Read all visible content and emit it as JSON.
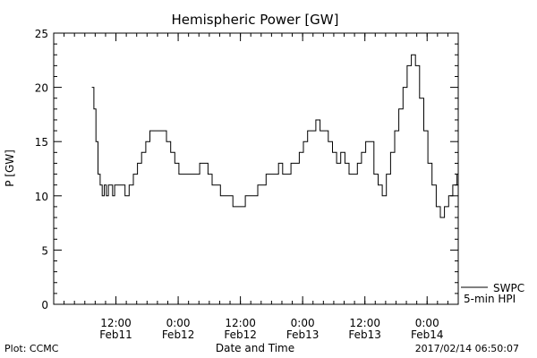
{
  "chart_data": {
    "type": "line",
    "title": "Hemispheric Power [GW]",
    "xlabel": "Date and Time",
    "ylabel": "P [GW]",
    "ylim": [
      0,
      25
    ],
    "y_ticks": [
      0,
      5,
      10,
      15,
      20,
      25
    ],
    "xlim": [
      "2017-02-11 00:00",
      "2017-02-14 06:00"
    ],
    "x_ticks": [
      {
        "x": "2017-02-11 12:00",
        "time": "12:00",
        "date": "Feb11"
      },
      {
        "x": "2017-02-12 00:00",
        "time": "0:00",
        "date": "Feb12"
      },
      {
        "x": "2017-02-12 12:00",
        "time": "12:00",
        "date": "Feb12"
      },
      {
        "x": "2017-02-13 00:00",
        "time": "0:00",
        "date": "Feb13"
      },
      {
        "x": "2017-02-13 12:00",
        "time": "12:00",
        "date": "Feb13"
      },
      {
        "x": "2017-02-14 00:00",
        "time": "0:00",
        "date": "Feb14"
      }
    ],
    "grid": false,
    "legend": {
      "placement": "bottom-right",
      "entries": [
        "SWPC",
        "5-min HPI"
      ]
    },
    "series": [
      {
        "name": "SWPC 5-min HPI",
        "x": [
          "2017-02-11 07:21",
          "2017-02-11 07:45",
          "2017-02-11 08:09",
          "2017-02-11 08:33",
          "2017-02-11 08:57",
          "2017-02-11 09:21",
          "2017-02-11 09:45",
          "2017-02-11 10:09",
          "2017-02-11 10:33",
          "2017-02-11 10:57",
          "2017-02-11 11:21",
          "2017-02-11 11:45",
          "2017-02-11 12:09",
          "2017-02-11 12:33",
          "2017-02-11 12:57",
          "2017-02-11 13:45",
          "2017-02-11 14:33",
          "2017-02-11 15:21",
          "2017-02-11 16:09",
          "2017-02-11 16:57",
          "2017-02-11 17:45",
          "2017-02-11 18:33",
          "2017-02-11 19:21",
          "2017-02-11 20:09",
          "2017-02-11 20:57",
          "2017-02-11 21:45",
          "2017-02-11 22:33",
          "2017-02-11 23:21",
          "2017-02-12 00:09",
          "2017-02-12 00:57",
          "2017-02-12 01:45",
          "2017-02-12 02:33",
          "2017-02-12 03:21",
          "2017-02-12 04:09",
          "2017-02-12 04:57",
          "2017-02-12 05:45",
          "2017-02-12 06:33",
          "2017-02-12 07:21",
          "2017-02-12 08:09",
          "2017-02-12 08:57",
          "2017-02-12 09:45",
          "2017-02-12 10:33",
          "2017-02-12 11:21",
          "2017-02-12 12:09",
          "2017-02-12 12:57",
          "2017-02-12 13:45",
          "2017-02-12 14:33",
          "2017-02-12 15:21",
          "2017-02-12 16:09",
          "2017-02-12 16:57",
          "2017-02-12 17:45",
          "2017-02-12 18:33",
          "2017-02-12 19:21",
          "2017-02-12 20:09",
          "2017-02-12 20:57",
          "2017-02-12 21:45",
          "2017-02-12 22:33",
          "2017-02-12 23:21",
          "2017-02-13 00:09",
          "2017-02-13 00:57",
          "2017-02-13 01:45",
          "2017-02-13 02:33",
          "2017-02-13 03:21",
          "2017-02-13 04:09",
          "2017-02-13 04:57",
          "2017-02-13 05:45",
          "2017-02-13 06:33",
          "2017-02-13 07:21",
          "2017-02-13 08:09",
          "2017-02-13 08:57",
          "2017-02-13 09:45",
          "2017-02-13 10:33",
          "2017-02-13 11:21",
          "2017-02-13 12:09",
          "2017-02-13 12:57",
          "2017-02-13 13:45",
          "2017-02-13 14:33",
          "2017-02-13 15:21",
          "2017-02-13 16:09",
          "2017-02-13 16:57",
          "2017-02-13 17:45",
          "2017-02-13 18:33",
          "2017-02-13 19:21",
          "2017-02-13 20:09",
          "2017-02-13 20:57",
          "2017-02-13 21:45",
          "2017-02-13 22:33",
          "2017-02-13 23:21",
          "2017-02-14 00:09",
          "2017-02-14 00:57",
          "2017-02-14 01:45",
          "2017-02-14 02:33",
          "2017-02-14 03:21",
          "2017-02-14 04:09",
          "2017-02-14 04:57",
          "2017-02-14 05:45"
        ],
        "values": [
          20,
          18,
          15,
          12,
          11,
          10,
          11,
          10,
          11,
          11,
          10,
          11,
          11,
          11,
          11,
          10,
          11,
          12,
          13,
          14,
          15,
          16,
          16,
          16,
          16,
          15,
          14,
          13,
          12,
          12,
          12,
          12,
          12,
          13,
          13,
          12,
          11,
          11,
          10,
          10,
          10,
          9,
          9,
          9,
          10,
          10,
          10,
          11,
          11,
          12,
          12,
          12,
          13,
          12,
          12,
          13,
          13,
          14,
          15,
          16,
          16,
          17,
          16,
          16,
          15,
          14,
          13,
          14,
          13,
          12,
          12,
          13,
          14,
          15,
          15,
          12,
          11,
          10,
          12,
          14,
          16,
          18,
          20,
          22,
          23,
          22,
          19,
          16,
          13,
          11,
          9,
          8,
          9,
          10,
          11,
          12
        ]
      }
    ]
  },
  "footer": {
    "left": "Plot: CCMC",
    "right": "2017/02/14 06:50:07"
  }
}
